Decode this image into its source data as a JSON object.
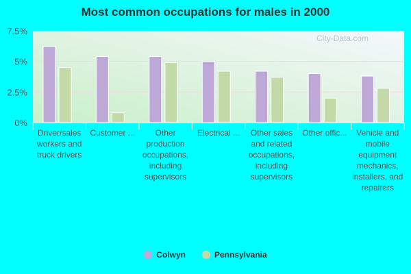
{
  "chart_data": {
    "type": "bar",
    "title": "Most common occupations for males in 2000",
    "categories": [
      "Driver/sales workers and truck drivers",
      "Customer ...",
      "Other production occupations, including supervisors",
      "Electrical ...",
      "Other sales and related occupations, including supervisors",
      "Other offic...",
      "Vehicle and mobile equipment mechanics, installers, and repairers"
    ],
    "series": [
      {
        "name": "Colwyn",
        "color": "#bea8d8",
        "values": [
          6.2,
          5.4,
          5.4,
          5.0,
          4.2,
          4.0,
          3.8
        ]
      },
      {
        "name": "Pennsylvania",
        "color": "#c4d9a8",
        "values": [
          4.5,
          0.8,
          4.9,
          4.2,
          3.7,
          2.0,
          2.8
        ]
      }
    ],
    "ylim": [
      0,
      7.5
    ],
    "yticks": [
      "0%",
      "2.5%",
      "5%",
      "7.5%"
    ],
    "grid": true,
    "legend": "bottom",
    "watermark": "City-Data.com"
  }
}
